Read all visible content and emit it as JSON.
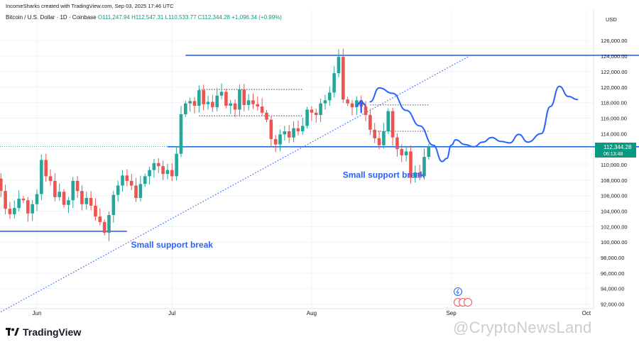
{
  "header": {
    "text": "IncomeSharks created with TradingView.com, Sep 03, 2025 17:46 UTC"
  },
  "legend": {
    "symbol": "Bitcoin / U.S. Dollar · 1D · Coinbase",
    "open": "O111,247.94",
    "high": "H112,547.31",
    "low": "L110,533.77",
    "close": "C112,344.28",
    "change": "+1,096.34 (+0.99%)"
  },
  "price_badge": {
    "price": "112,344.28",
    "countdown": "06:13:48"
  },
  "logo": {
    "text": "TradingView"
  },
  "watermark": {
    "text": "@CryptoNewsLand"
  },
  "colors": {
    "up": "#26a69a",
    "down": "#ef5350",
    "line": "#2962ff",
    "badge": "#089981"
  },
  "chart_data": {
    "type": "candlestick",
    "y_unit": "USD",
    "ylim": [
      91000,
      128000
    ],
    "yticks": [
      92000,
      94000,
      96000,
      98000,
      100000,
      102000,
      104000,
      106000,
      108000,
      110000,
      112000,
      114000,
      116000,
      118000,
      120000,
      122000,
      124000,
      126000
    ],
    "ytick_labels": [
      "92,000.00",
      "94,000.00",
      "96,000.00",
      "98,000.00",
      "100,000.00",
      "102,000.00",
      "104,000.00",
      "106,000.00",
      "108,000.00",
      "110,000.00",
      "112,000.00",
      "114,000.00",
      "116,000.00",
      "118,000.00",
      "120,000.00",
      "122,000.00",
      "124,000.00",
      "126,000.00"
    ],
    "x_labels": [
      {
        "label": "Jun",
        "date": "2025-06-01"
      },
      {
        "label": "Jul",
        "date": "2025-07-01"
      },
      {
        "label": "Aug",
        "date": "2025-08-01"
      },
      {
        "label": "Sep",
        "date": "2025-09-01"
      },
      {
        "label": "Oct",
        "date": "2025-10-01"
      }
    ],
    "candles_start": "2025-05-20",
    "close_start": 106000,
    "closes": [
      107800,
      108500,
      109000,
      108200,
      106600,
      104300,
      103600,
      104400,
      105600,
      105400,
      103700,
      104900,
      106200,
      110600,
      108500,
      107900,
      105800,
      106500,
      104800,
      105400,
      107900,
      106600,
      104900,
      105700,
      104700,
      103300,
      102600,
      101200,
      103500,
      106100,
      107300,
      108600,
      107900,
      107300,
      105700,
      107500,
      108500,
      109300,
      110200,
      109800,
      108800,
      109300,
      108500,
      111400,
      116500,
      117900,
      118200,
      117600,
      119600,
      117800,
      118100,
      117400,
      118900,
      119400,
      117600,
      117900,
      117100,
      119700,
      117700,
      118300,
      117800,
      117500,
      116700,
      115800,
      113300,
      112600,
      113900,
      114300,
      113500,
      114700,
      114300,
      115000,
      117100,
      116700,
      116400,
      117900,
      118300,
      119300,
      121800,
      123900,
      118400,
      117900,
      117400,
      118300,
      117500,
      116400,
      114500,
      113400,
      112500,
      114300,
      116900,
      113500,
      112000,
      111200,
      111700,
      108300,
      109000,
      108500,
      111000,
      112344
    ],
    "annotations": [
      {
        "text": "Small support break",
        "date": "2025-07-01",
        "price": 99300
      },
      {
        "text": "Small support break",
        "date": "2025-08-17",
        "price": 108300
      }
    ],
    "support_lines": [
      {
        "from": "2025-05-20",
        "to": "2025-06-21",
        "price": 101400
      },
      {
        "from": "2025-06-30",
        "to": "2025-10-17",
        "price": 112300
      },
      {
        "from": "2025-07-04",
        "to": "2025-10-20",
        "price": 124100
      }
    ],
    "trendline": {
      "from": {
        "date": "2025-05-24",
        "price": 91000
      },
      "to": {
        "date": "2025-09-05",
        "price": 124000
      }
    },
    "projection": [
      {
        "date": "2025-08-14",
        "price": 118100
      },
      {
        "date": "2025-08-16",
        "price": 119900
      },
      {
        "date": "2025-08-19",
        "price": 119200
      },
      {
        "date": "2025-08-22",
        "price": 117000
      },
      {
        "date": "2025-08-25",
        "price": 115000
      },
      {
        "date": "2025-08-28",
        "price": 112500
      },
      {
        "date": "2025-08-30",
        "price": 110400
      },
      {
        "date": "2025-08-31",
        "price": 110800
      },
      {
        "date": "2025-09-01",
        "price": 112500
      },
      {
        "date": "2025-09-02",
        "price": 113200
      },
      {
        "date": "2025-09-04",
        "price": 112600
      },
      {
        "date": "2025-09-06",
        "price": 112300
      },
      {
        "date": "2025-09-08",
        "price": 112900
      },
      {
        "date": "2025-09-10",
        "price": 113500
      },
      {
        "date": "2025-09-12",
        "price": 113000
      },
      {
        "date": "2025-09-14",
        "price": 112800
      },
      {
        "date": "2025-09-16",
        "price": 113900
      },
      {
        "date": "2025-09-18",
        "price": 112900
      },
      {
        "date": "2025-09-21",
        "price": 114000
      },
      {
        "date": "2025-09-23",
        "price": 117500
      },
      {
        "date": "2025-09-25",
        "price": 120100
      },
      {
        "date": "2025-09-27",
        "price": 118800
      },
      {
        "date": "2025-09-29",
        "price": 118400
      }
    ]
  }
}
